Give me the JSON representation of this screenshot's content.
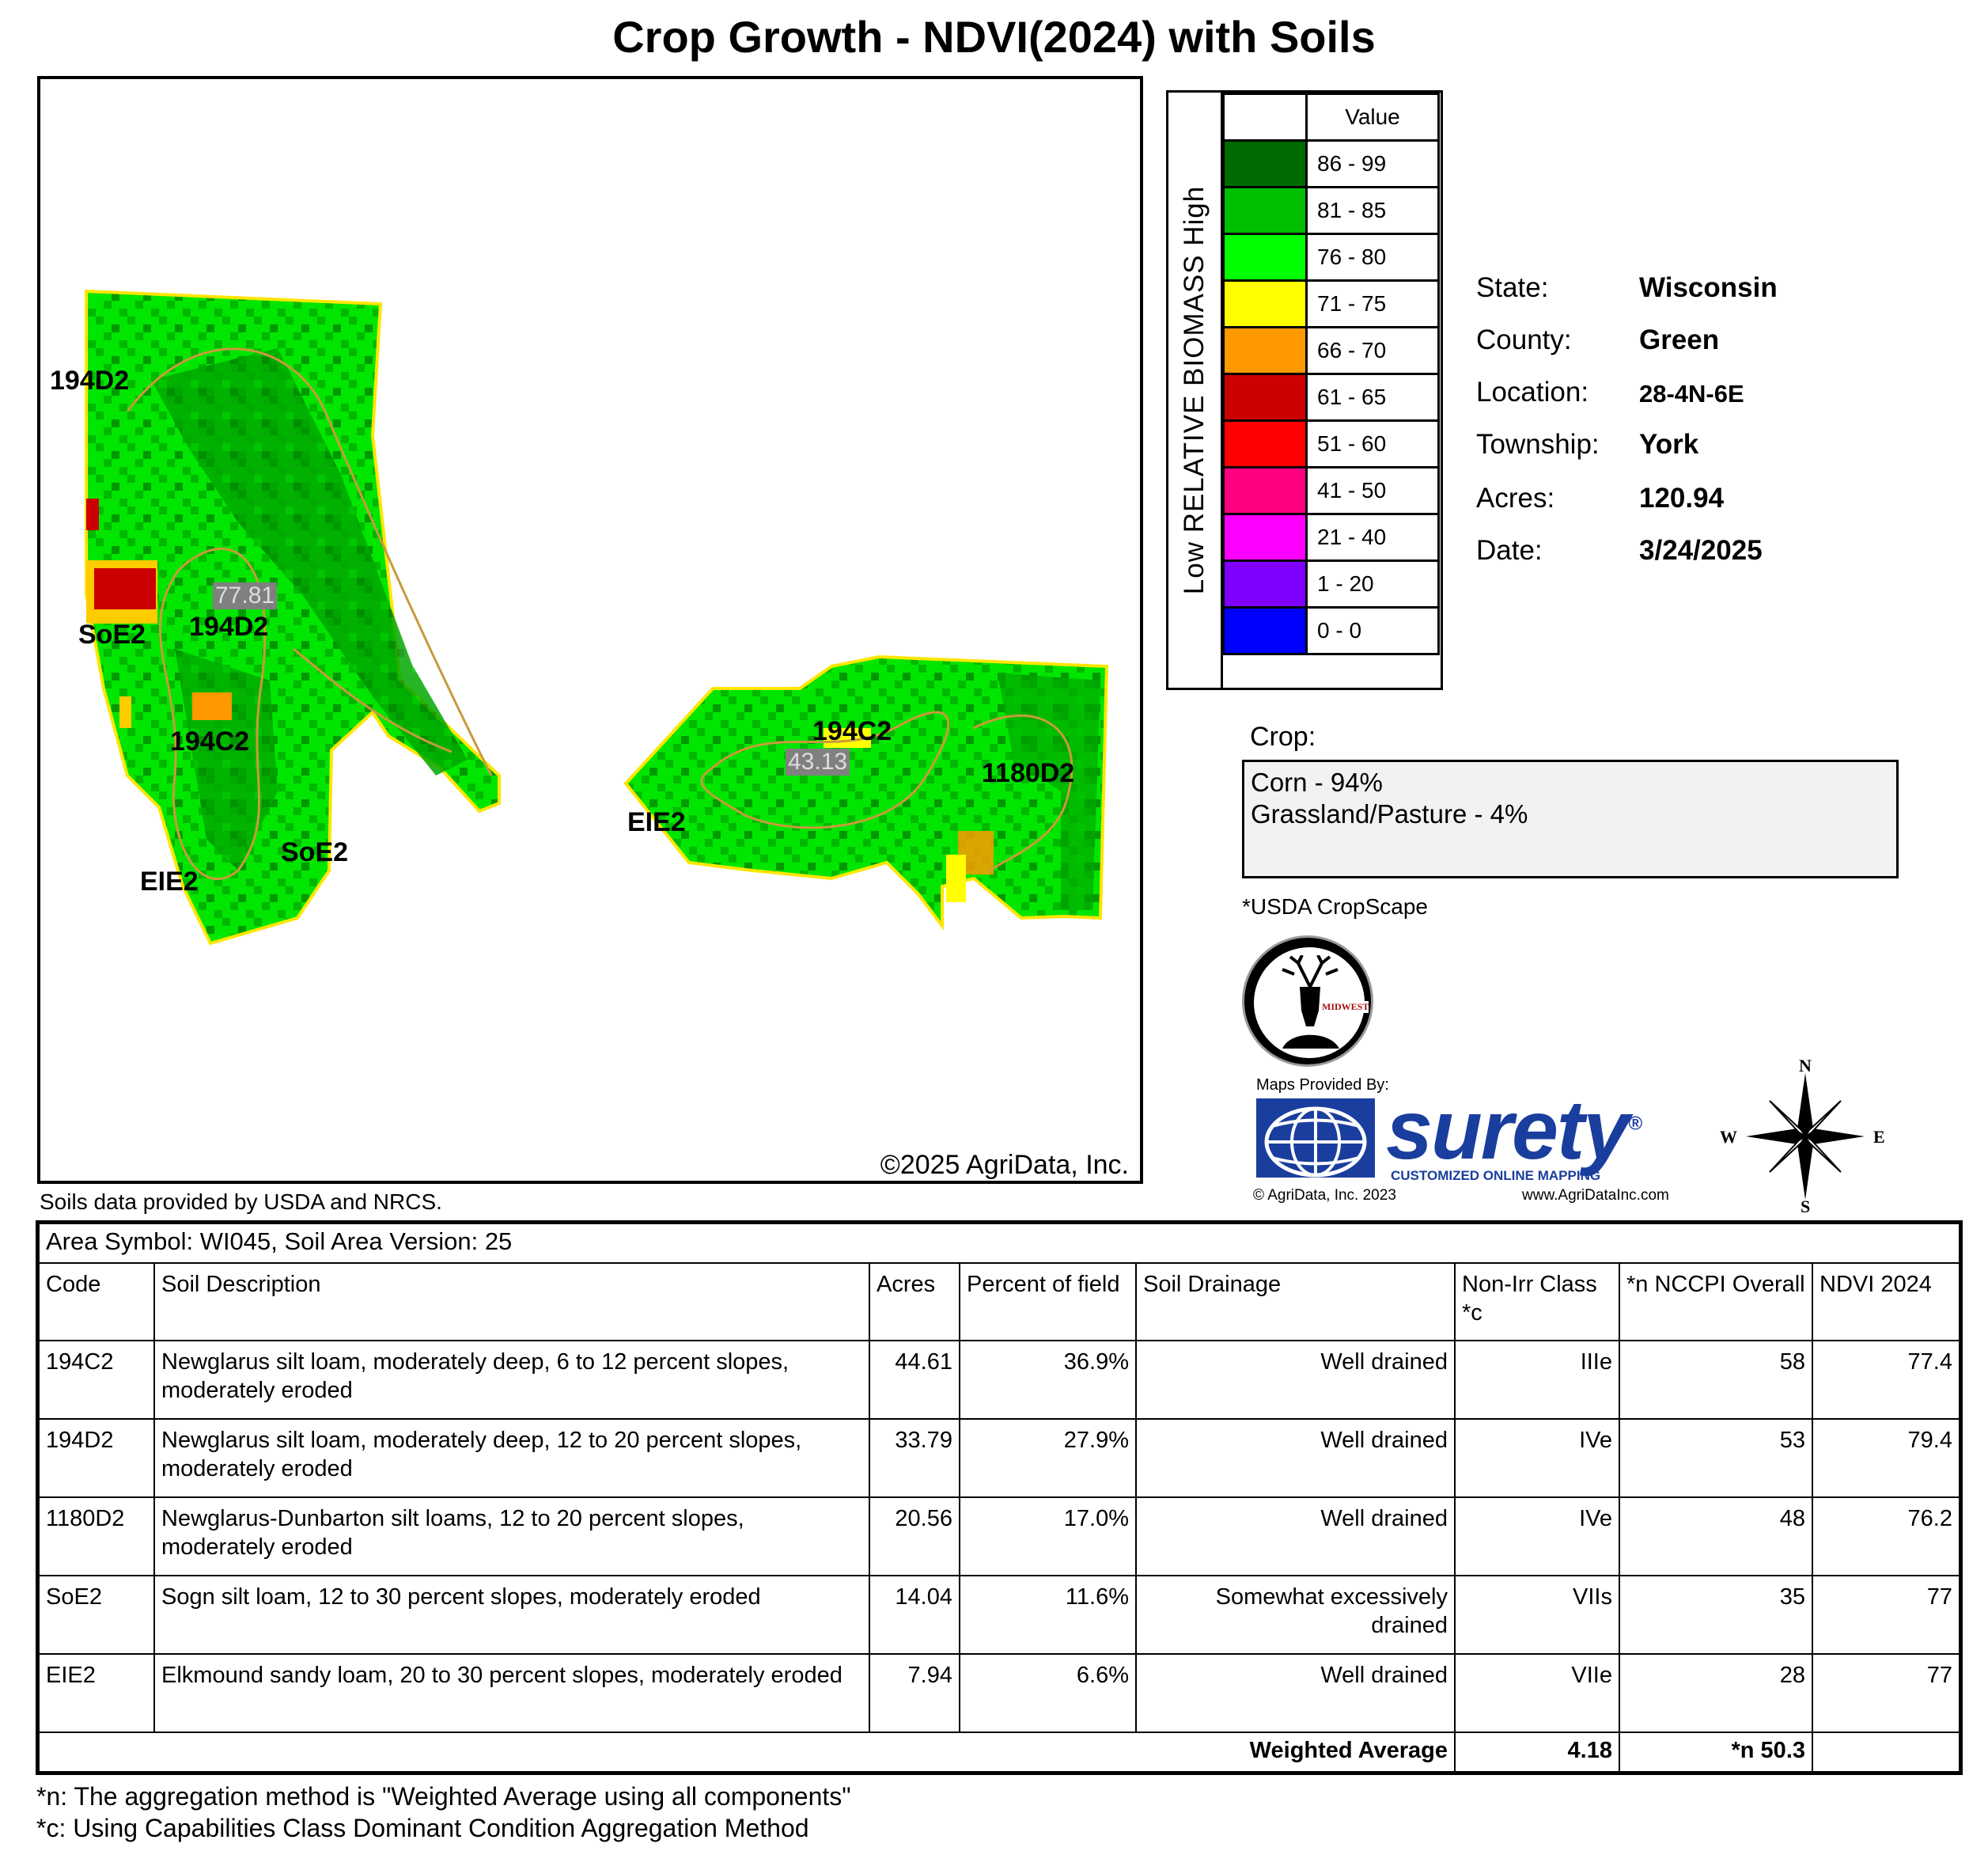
{
  "title": "Crop Growth - NDVI(2024) with Soils",
  "map": {
    "copyright": "©2025 AgriData, Inc.",
    "soil_labels": [
      "194D2",
      "194D2",
      "SoE2",
      "194C2",
      "SoE2",
      "EIE2",
      "194C2",
      "EIE2",
      "1180D2"
    ],
    "ndvi_labels": [
      "77.81",
      "43.13"
    ]
  },
  "legend": {
    "axis_label": "Low RELATIVE BIOMASS High",
    "header": "Value",
    "classes": [
      {
        "label": "86 - 99",
        "color": "#006b00"
      },
      {
        "label": "81 - 85",
        "color": "#00bf00"
      },
      {
        "label": "76 - 80",
        "color": "#00ff00"
      },
      {
        "label": "71 - 75",
        "color": "#ffff00"
      },
      {
        "label": "66 - 70",
        "color": "#ff9900"
      },
      {
        "label": "61 - 65",
        "color": "#cc0000"
      },
      {
        "label": "51 - 60",
        "color": "#ff0000"
      },
      {
        "label": "41 - 50",
        "color": "#ff0080"
      },
      {
        "label": "21 - 40",
        "color": "#ff00ff"
      },
      {
        "label": "1 - 20",
        "color": "#8000ff"
      },
      {
        "label": "0 - 0",
        "color": "#0000ff"
      }
    ]
  },
  "info": {
    "state_label": "State:",
    "state": "Wisconsin",
    "county_label": "County:",
    "county": "Green",
    "location_label": "Location:",
    "location": "28-4N-6E",
    "township_label": "Township:",
    "township": "York",
    "acres_label": "Acres:",
    "acres": "120.94",
    "date_label": "Date:",
    "date": "3/24/2025"
  },
  "crop": {
    "label": "Crop:",
    "lines": [
      "Corn - 94%",
      "Grassland/Pasture - 4%"
    ],
    "source": "*USDA CropScape"
  },
  "branding": {
    "logo_text": "MIDWEST",
    "maps_by": "Maps Provided By:",
    "brand": "surety",
    "registered": "®",
    "tagline": "CUSTOMIZED ONLINE MAPPING",
    "copyright": "© AgriData, Inc. 2023",
    "url": "www.AgriDataInc.com",
    "compass": {
      "n": "N",
      "s": "S",
      "e": "E",
      "w": "W"
    }
  },
  "soils": {
    "source": "Soils data provided by USDA and NRCS.",
    "area_symbol": "Area Symbol: WI045, Soil Area Version: 25",
    "headers": [
      "Code",
      "Soil Description",
      "Acres",
      "Percent of field",
      "Soil Drainage",
      "Non-Irr Class *c",
      "*n NCCPI Overall",
      "NDVI 2024"
    ],
    "rows": [
      {
        "code": "194C2",
        "desc": "Newglarus silt loam, moderately deep, 6 to 12 percent slopes, moderately eroded",
        "acres": "44.61",
        "pct": "36.9%",
        "drain": "Well drained",
        "cls": "IIIe",
        "nccpi": "58",
        "ndvi": "77.4"
      },
      {
        "code": "194D2",
        "desc": "Newglarus silt loam, moderately deep, 12 to 20 percent slopes, moderately eroded",
        "acres": "33.79",
        "pct": "27.9%",
        "drain": "Well drained",
        "cls": "IVe",
        "nccpi": "53",
        "ndvi": "79.4"
      },
      {
        "code": "1180D2",
        "desc": "Newglarus-Dunbarton silt loams, 12 to 20 percent slopes, moderately eroded",
        "acres": "20.56",
        "pct": "17.0%",
        "drain": "Well drained",
        "cls": "IVe",
        "nccpi": "48",
        "ndvi": "76.2"
      },
      {
        "code": "SoE2",
        "desc": "Sogn silt loam, 12 to 30 percent slopes, moderately eroded",
        "acres": "14.04",
        "pct": "11.6%",
        "drain": "Somewhat excessively drained",
        "cls": "VIIs",
        "nccpi": "35",
        "ndvi": "77"
      },
      {
        "code": "EIE2",
        "desc": "Elkmound sandy loam, 20 to 30 percent slopes, moderately eroded",
        "acres": "7.94",
        "pct": "6.6%",
        "drain": "Well drained",
        "cls": "VIIe",
        "nccpi": "28",
        "ndvi": "77"
      }
    ],
    "footer": {
      "label": "Weighted Average",
      "cls": "4.18",
      "nccpi": "*n 50.3"
    }
  },
  "notes": [
    "*n: The aggregation method is \"Weighted Average using all components\"",
    "*c: Using Capabilities Class Dominant Condition Aggregation Method"
  ]
}
